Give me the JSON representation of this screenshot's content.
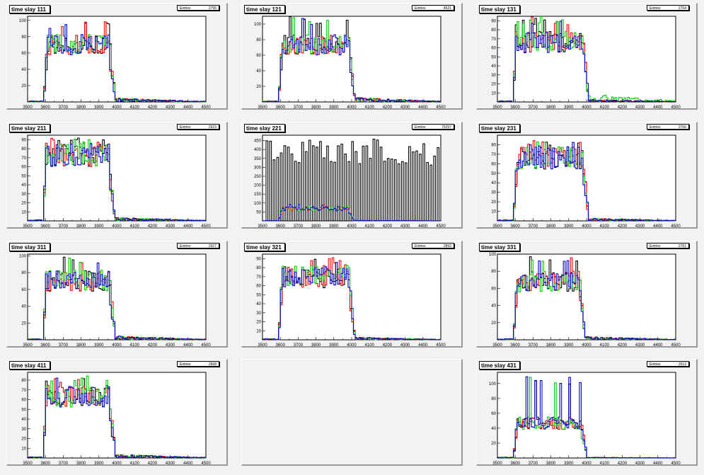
{
  "colors": {
    "black": "#000000",
    "red": "#ff0000",
    "green": "#00cc00",
    "blue": "#0000cc"
  },
  "chart_data": [
    {
      "type": "line",
      "title": "time slay 111",
      "stats_label": "Entries",
      "stats_value": "2795",
      "xlim": [
        3500,
        4500
      ],
      "ylim": [
        0,
        105
      ],
      "x_ticks": [
        3500,
        3600,
        3700,
        3800,
        3900,
        4000,
        4100,
        4200,
        4300,
        4400,
        4500
      ],
      "y_ticks": [
        20,
        40,
        60,
        80,
        100
      ],
      "shape": "box",
      "start": 3610,
      "end": 3965,
      "level": 72,
      "peak": 100,
      "tail": 5
    },
    {
      "type": "line",
      "title": "time slay 121",
      "stats_label": "Entries",
      "stats_value": "4521",
      "xlim": [
        3500,
        4500
      ],
      "ylim": [
        0,
        110
      ],
      "x_ticks": [
        3500,
        3600,
        3700,
        3800,
        3900,
        4000,
        4100,
        4200,
        4300,
        4400,
        4500
      ],
      "y_ticks": [
        20,
        40,
        60,
        80,
        100
      ],
      "shape": "box",
      "start": 3610,
      "end": 3990,
      "level": 75,
      "peak": 110,
      "tail": 6
    },
    {
      "type": "line",
      "title": "time slay 131",
      "stats_label": "Entries",
      "stats_value": "2764",
      "xlim": [
        3500,
        4500
      ],
      "ylim": [
        0,
        95
      ],
      "x_ticks": [
        3500,
        3600,
        3700,
        3800,
        3900,
        4000,
        4100,
        4200,
        4300,
        4400,
        4500
      ],
      "y_ticks": [
        10,
        20,
        30,
        40,
        50,
        60,
        70,
        80,
        90
      ],
      "shape": "box",
      "start": 3605,
      "end": 3985,
      "level": 68,
      "peak": 95,
      "tail": 3,
      "green_tail": 10
    },
    {
      "type": "line",
      "title": "time slay 211",
      "stats_label": "Entries",
      "stats_value": "2923",
      "xlim": [
        3500,
        4500
      ],
      "ylim": [
        0,
        95
      ],
      "x_ticks": [
        3500,
        3600,
        3700,
        3800,
        3900,
        4000,
        4100,
        4200,
        4300,
        4400,
        4500
      ],
      "y_ticks": [
        10,
        20,
        30,
        40,
        50,
        60,
        70,
        80,
        90
      ],
      "shape": "box",
      "start": 3605,
      "end": 3960,
      "level": 75,
      "peak": 95,
      "tail": 4
    },
    {
      "type": "line",
      "title": "time slay 221",
      "stats_label": "Entries",
      "stats_value": "75297",
      "xlim": [
        3500,
        4500
      ],
      "ylim": [
        0,
        480
      ],
      "x_ticks": [
        3500,
        3600,
        3700,
        3800,
        3900,
        4000,
        4100,
        4200,
        4300,
        4400,
        4500
      ],
      "y_ticks": [
        50,
        100,
        150,
        200,
        250,
        300,
        350,
        400,
        450
      ],
      "shape": "comb",
      "start": 3610,
      "end": 3985,
      "level": 70,
      "peak": 95,
      "tail": 3
    },
    {
      "type": "line",
      "title": "time slay 231",
      "stats_label": "Entries",
      "stats_value": "2706",
      "xlim": [
        3500,
        4500
      ],
      "ylim": [
        0,
        90
      ],
      "x_ticks": [
        3500,
        3600,
        3700,
        3800,
        3900,
        4000,
        4100,
        4200,
        4300,
        4400,
        4500
      ],
      "y_ticks": [
        10,
        20,
        30,
        40,
        50,
        60,
        70,
        80
      ],
      "shape": "box",
      "start": 3610,
      "end": 3985,
      "level": 68,
      "peak": 85,
      "tail": 3
    },
    {
      "type": "line",
      "title": "time slay 311",
      "stats_label": "Entries",
      "stats_value": "2927",
      "xlim": [
        3500,
        4500
      ],
      "ylim": [
        0,
        102
      ],
      "x_ticks": [
        3500,
        3600,
        3700,
        3800,
        3900,
        4000,
        4100,
        4200,
        4300,
        4400,
        4500
      ],
      "y_ticks": [
        20,
        40,
        60,
        80,
        100
      ],
      "shape": "box",
      "start": 3605,
      "end": 3965,
      "level": 72,
      "peak": 100,
      "tail": 5
    },
    {
      "type": "line",
      "title": "time slay 321",
      "stats_label": "Entries",
      "stats_value": "2892",
      "xlim": [
        3500,
        4500
      ],
      "ylim": [
        0,
        95
      ],
      "x_ticks": [
        3500,
        3600,
        3700,
        3800,
        3900,
        4000,
        4100,
        4200,
        4300,
        4400,
        4500
      ],
      "y_ticks": [
        10,
        20,
        30,
        40,
        50,
        60,
        70,
        80,
        90
      ],
      "shape": "box",
      "start": 3610,
      "end": 3990,
      "level": 72,
      "peak": 92,
      "tail": 3
    },
    {
      "type": "line",
      "title": "time slay 331",
      "stats_label": "Entries",
      "stats_value": "2761",
      "xlim": [
        3500,
        4500
      ],
      "ylim": [
        0,
        100
      ],
      "x_ticks": [
        3500,
        3600,
        3700,
        3800,
        3900,
        4000,
        4100,
        4200,
        4300,
        4400,
        4500
      ],
      "y_ticks": [
        20,
        40,
        60,
        80,
        100
      ],
      "shape": "box",
      "start": 3610,
      "end": 3965,
      "level": 70,
      "peak": 100,
      "tail": 4
    },
    {
      "type": "line",
      "title": "time slay 411",
      "stats_label": "Entries",
      "stats_value": "2668",
      "xlim": [
        3500,
        4500
      ],
      "ylim": [
        0,
        88
      ],
      "x_ticks": [
        3500,
        3600,
        3700,
        3800,
        3900,
        4000,
        4100,
        4200,
        4300,
        4400,
        4500
      ],
      "y_ticks": [
        10,
        20,
        30,
        40,
        50,
        60,
        70,
        80
      ],
      "shape": "box",
      "start": 3605,
      "end": 3965,
      "level": 65,
      "peak": 85,
      "tail": 4
    },
    null,
    {
      "type": "line",
      "title": "time slay 431",
      "stats_label": "Entries",
      "stats_value": "2012",
      "xlim": [
        3500,
        4500
      ],
      "ylim": [
        0,
        115
      ],
      "x_ticks": [
        3500,
        3600,
        3700,
        3800,
        3900,
        4000,
        4100,
        4200,
        4300,
        4400,
        4500
      ],
      "y_ticks": [
        20,
        40,
        60,
        80,
        100
      ],
      "shape": "box",
      "start": 3610,
      "end": 3975,
      "level": 48,
      "peak": 110,
      "tail": 1
    }
  ]
}
